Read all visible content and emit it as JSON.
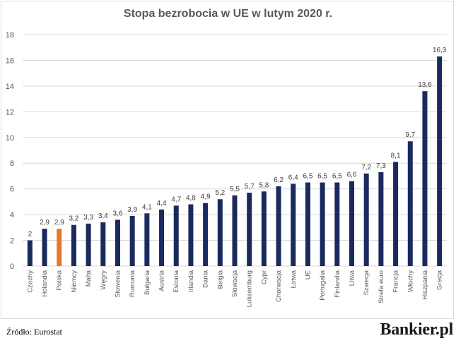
{
  "chart_data": {
    "type": "bar",
    "title": "Stopa bezrobocia w UE w lutym 2020 r.",
    "xlabel": "",
    "ylabel": "",
    "ylim": [
      0,
      18
    ],
    "yticks": [
      0,
      2,
      4,
      6,
      8,
      10,
      12,
      14,
      16,
      18
    ],
    "grid": true,
    "categories": [
      "Czechy",
      "Holandia",
      "Polska",
      "Niemcy",
      "Malta",
      "Węgry",
      "Słowenia",
      "Rumunia",
      "Bułgaria",
      "Austria",
      "Estonia",
      "Irlandia",
      "Dania",
      "Belgia",
      "Słowacja",
      "Luksemburg",
      "Cypr",
      "Chorwacja",
      "Łotwa",
      "UE",
      "Portugalia",
      "Finlandia",
      "Litwa",
      "Szwecja",
      "Strefa euro",
      "Francja",
      "Włochy",
      "Hiszpania",
      "Grecja"
    ],
    "values": [
      2,
      2.9,
      2.9,
      3.2,
      3.3,
      3.4,
      3.6,
      3.9,
      4.1,
      4.4,
      4.7,
      4.8,
      4.9,
      5.2,
      5.5,
      5.7,
      5.8,
      6.2,
      6.4,
      6.5,
      6.5,
      6.5,
      6.6,
      7.2,
      7.3,
      8.1,
      9.7,
      13.6,
      16.3
    ],
    "value_labels": [
      "2",
      "2,9",
      "2,9",
      "3,2",
      "3,3",
      "3,4",
      "3,6",
      "3,9",
      "4,1",
      "4,4",
      "4,7",
      "4,8",
      "4,9",
      "5,2",
      "5,5",
      "5,7",
      "5,8",
      "6,2",
      "6,4",
      "6,5",
      "6,5",
      "6,5",
      "6,6",
      "7,2",
      "7,3",
      "8,1",
      "9,7",
      "13,6",
      "16,3"
    ],
    "highlight_category": "Polska",
    "colors": {
      "bar": "#1a2a5e",
      "highlight": "#e8772e",
      "grid": "#d9d9d9",
      "text": "#595959"
    }
  },
  "footer": {
    "source": "Źródło: Eurostat",
    "brand": "Bankier.pl"
  }
}
